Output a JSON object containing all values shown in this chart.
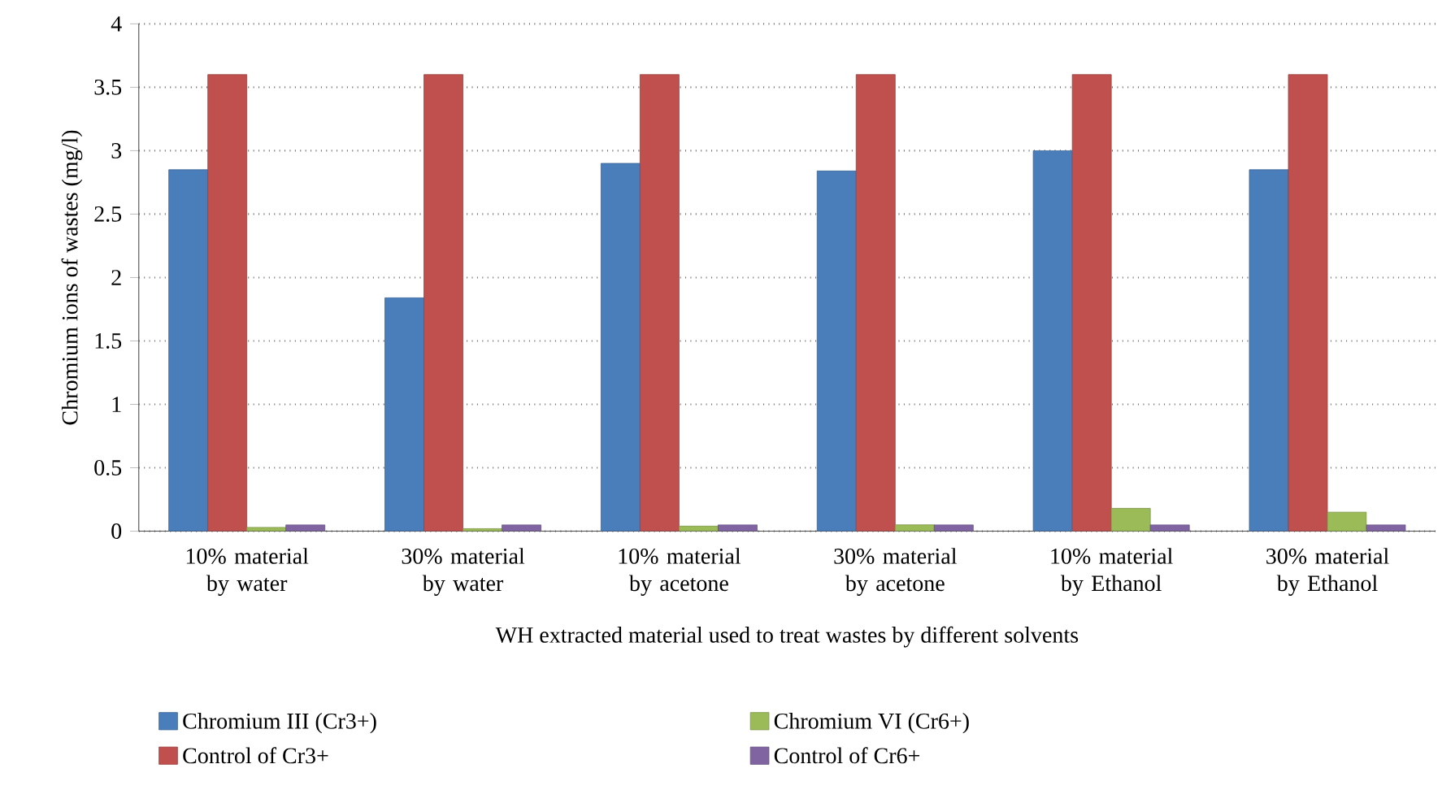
{
  "chart_data": {
    "type": "bar",
    "xlabel": "WH extracted material used to treat wastes by different solvents",
    "ylabel": "Chromium ions of wastes (mg/l)",
    "categories": [
      "10% material by water",
      "30% material by water",
      "10% material by acetone",
      "30% material by acetone",
      "10% material by Ethanol",
      "30% material by Ethanol"
    ],
    "series": [
      {
        "name": "Chromium III (Cr3+)",
        "color": "#4a7ebb",
        "values": [
          2.85,
          1.84,
          2.9,
          2.84,
          3.0,
          2.85
        ]
      },
      {
        "name": "Control of Cr3+",
        "color": "#c0504d",
        "values": [
          3.6,
          3.6,
          3.6,
          3.6,
          3.6,
          3.6
        ]
      },
      {
        "name": "Chromium VI (Cr6+)",
        "color": "#9bbb59",
        "values": [
          0.03,
          0.02,
          0.04,
          0.05,
          0.18,
          0.15
        ]
      },
      {
        "name": "Control of Cr6+",
        "color": "#8064a2",
        "values": [
          0.05,
          0.05,
          0.05,
          0.05,
          0.05,
          0.05
        ]
      }
    ],
    "ylim": [
      0,
      4
    ],
    "yticks": [
      0,
      0.5,
      1,
      1.5,
      2,
      2.5,
      3,
      3.5,
      4
    ],
    "grid": "y",
    "legend": "bottom"
  }
}
